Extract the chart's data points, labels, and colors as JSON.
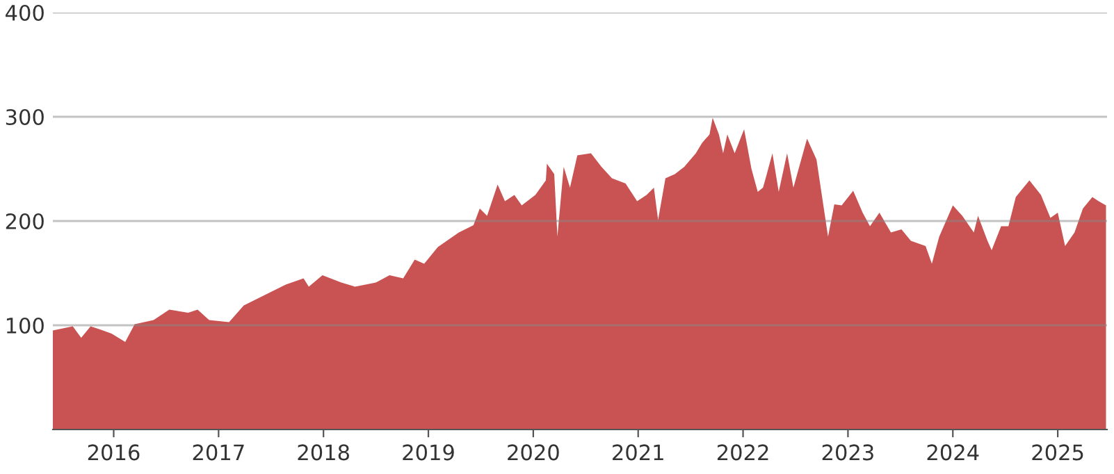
{
  "chart_data": {
    "type": "area",
    "x": [
      2015.42,
      2015.61,
      2015.69,
      2015.78,
      2015.87,
      2015.98,
      2016.11,
      2016.2,
      2016.38,
      2016.53,
      2016.71,
      2016.8,
      2016.91,
      2017.1,
      2017.24,
      2017.44,
      2017.64,
      2017.81,
      2017.86,
      2017.99,
      2018.17,
      2018.3,
      2018.5,
      2018.63,
      2018.76,
      2018.87,
      2018.96,
      2019.09,
      2019.29,
      2019.43,
      2019.49,
      2019.56,
      2019.66,
      2019.73,
      2019.82,
      2019.89,
      2020.02,
      2020.12,
      2020.13,
      2020.2,
      2020.23,
      2020.29,
      2020.35,
      2020.42,
      2020.55,
      2020.65,
      2020.75,
      2020.88,
      2020.99,
      2021.08,
      2021.15,
      2021.19,
      2021.26,
      2021.35,
      2021.44,
      2021.55,
      2021.61,
      2021.68,
      2021.71,
      2021.77,
      2021.81,
      2021.85,
      2021.92,
      2022.01,
      2022.08,
      2022.14,
      2022.19,
      2022.21,
      2022.28,
      2022.34,
      2022.42,
      2022.48,
      2022.61,
      2022.7,
      2022.77,
      2022.81,
      2022.87,
      2022.94,
      2023.05,
      2023.14,
      2023.21,
      2023.3,
      2023.41,
      2023.51,
      2023.6,
      2023.74,
      2023.8,
      2023.87,
      2024.0,
      2024.09,
      2024.2,
      2024.24,
      2024.33,
      2024.37,
      2024.46,
      2024.53,
      2024.6,
      2024.73,
      2024.84,
      2024.93,
      2025.0,
      2025.07,
      2025.16,
      2025.24,
      2025.33,
      2025.39,
      2025.46
    ],
    "series": [
      {
        "color": "#c95252",
        "values": [
          95,
          99,
          88,
          99,
          96,
          92,
          84,
          101,
          105,
          115,
          112,
          115,
          105,
          103,
          119,
          129,
          139,
          145,
          137,
          148,
          141,
          137,
          141,
          148,
          145,
          163,
          159,
          175,
          189,
          196,
          212,
          205,
          235,
          219,
          225,
          215,
          225,
          239,
          255,
          245,
          185,
          252,
          232,
          263,
          265,
          252,
          241,
          236,
          219,
          225,
          232,
          201,
          241,
          245,
          252,
          265,
          275,
          283,
          299,
          283,
          265,
          283,
          265,
          288,
          250,
          228,
          232,
          239,
          265,
          228,
          265,
          232,
          279,
          259,
          212,
          185,
          216,
          215,
          229,
          208,
          195,
          208,
          189,
          192,
          181,
          176,
          159,
          185,
          215,
          205,
          189,
          205,
          181,
          172,
          195,
          195,
          223,
          239,
          225,
          203,
          208,
          176,
          189,
          212,
          223,
          219,
          215
        ]
      }
    ],
    "xlim": [
      2015.42,
      2025.47
    ],
    "xticks": [
      2016,
      2017,
      2018,
      2019,
      2020,
      2021,
      2022,
      2023,
      2024,
      2025
    ],
    "ylim": [
      0,
      400
    ],
    "yticks": [
      100,
      200,
      300,
      400
    ],
    "grid": "y",
    "legend": false
  }
}
